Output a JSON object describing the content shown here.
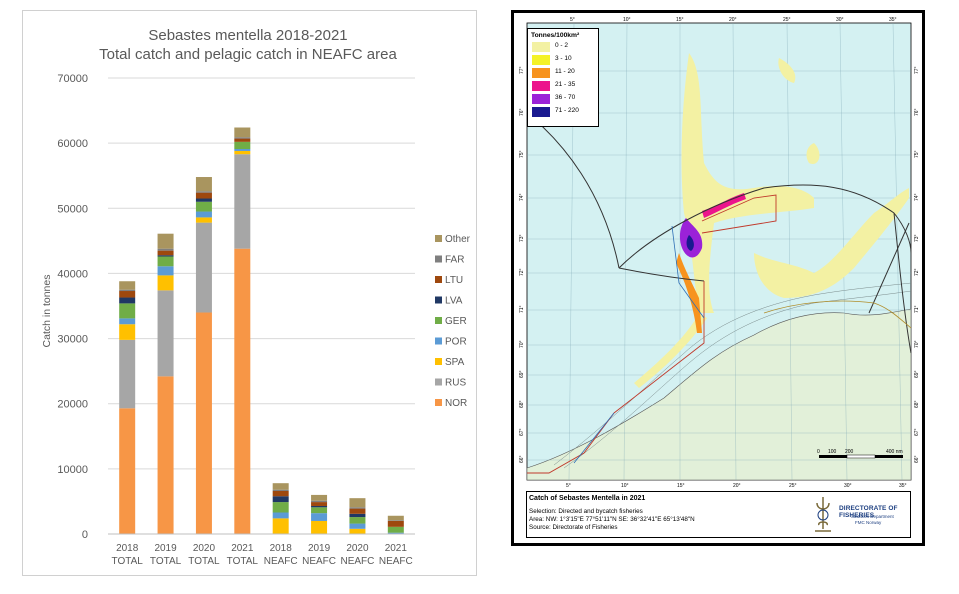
{
  "chart_data": {
    "type": "bar",
    "stacked": true,
    "title": "Sebastes mentella 2018-2021",
    "subtitle": "Total catch and pelagic catch in NEAFC area",
    "ylabel": "Catch in tonnes",
    "ylim": [
      0,
      70000
    ],
    "yticks": [
      "0",
      "10000",
      "20000",
      "30000",
      "40000",
      "50000",
      "60000",
      "70000"
    ],
    "yticks_values": [
      0,
      10000,
      20000,
      30000,
      40000,
      50000,
      60000,
      70000
    ],
    "grid": true,
    "legend_position": "right",
    "categories": [
      {
        "year": "2018",
        "group": "TOTAL"
      },
      {
        "year": "2019",
        "group": "TOTAL"
      },
      {
        "year": "2020",
        "group": "TOTAL"
      },
      {
        "year": "2021",
        "group": "TOTAL"
      },
      {
        "year": "2018",
        "group": "NEAFC"
      },
      {
        "year": "2019",
        "group": "NEAFC"
      },
      {
        "year": "2020",
        "group": "NEAFC"
      },
      {
        "year": "2021",
        "group": "NEAFC"
      }
    ],
    "series": [
      {
        "name": "NOR",
        "color": "#f79646",
        "values": [
          19300,
          24200,
          34000,
          43800,
          0,
          0,
          0,
          0
        ]
      },
      {
        "name": "RUS",
        "color": "#a6a6a6",
        "values": [
          10500,
          13200,
          13800,
          14500,
          0,
          0,
          0,
          0
        ]
      },
      {
        "name": "SPA",
        "color": "#ffc000",
        "values": [
          2400,
          2300,
          800,
          500,
          2400,
          2000,
          800,
          0
        ]
      },
      {
        "name": "POR",
        "color": "#5b9bd5",
        "values": [
          900,
          1400,
          900,
          300,
          900,
          1200,
          800,
          200
        ]
      },
      {
        "name": "GER",
        "color": "#70ad47",
        "values": [
          2300,
          1500,
          1500,
          1100,
          1600,
          900,
          1000,
          900
        ]
      },
      {
        "name": "LVA",
        "color": "#203864",
        "values": [
          900,
          200,
          500,
          0,
          900,
          200,
          500,
          0
        ]
      },
      {
        "name": "LTU",
        "color": "#9e480e",
        "values": [
          1000,
          700,
          900,
          500,
          800,
          600,
          800,
          900
        ]
      },
      {
        "name": "FAR",
        "color": "#7f7f7f",
        "values": [
          200,
          300,
          200,
          200,
          200,
          200,
          200,
          100
        ]
      },
      {
        "name": "Other",
        "color": "#a9955f",
        "values": [
          1300,
          2300,
          2200,
          1500,
          1000,
          900,
          1400,
          700
        ]
      }
    ]
  },
  "map": {
    "legend_title": "Tonnes/100km²",
    "legend": [
      {
        "label": "0 - 2",
        "color": "#f3f1a3"
      },
      {
        "label": "3 - 10",
        "color": "#f4f227"
      },
      {
        "label": "11 - 20",
        "color": "#f7931e"
      },
      {
        "label": "21 - 35",
        "color": "#ec148c"
      },
      {
        "label": "36 - 70",
        "color": "#9b22d8"
      },
      {
        "label": "71 - 220",
        "color": "#1a1a90"
      }
    ],
    "lon_labels": [
      "5°",
      "10°",
      "15°",
      "20°",
      "25°",
      "30°",
      "35°"
    ],
    "lat_labels": [
      "77°",
      "76°",
      "75°",
      "74°",
      "73°",
      "72°",
      "71°",
      "70°",
      "69°",
      "68°",
      "67°",
      "66°"
    ],
    "scale": {
      "ticks": [
        "0",
        "100",
        "200",
        "400 nm"
      ]
    },
    "footer": {
      "title": "Catch of Sebastes Mentella in 2021",
      "line1": "Selection: Directed and bycatch fisheries",
      "line2": "Area: NW: 1°3'15\"E  77°51'11\"N    SE: 36°32'41\"E  65°13'48\"N",
      "line3": "Source: Directorate of Fisheries"
    },
    "logo": {
      "name": "DIRECTORATE OF FISHERIES",
      "dept": "Statistics Department",
      "org": "FMC Norway"
    },
    "colors": {
      "sea": "#d4f1f2",
      "land": "#e2f0d9",
      "shoal": "#f3f1a3"
    }
  }
}
